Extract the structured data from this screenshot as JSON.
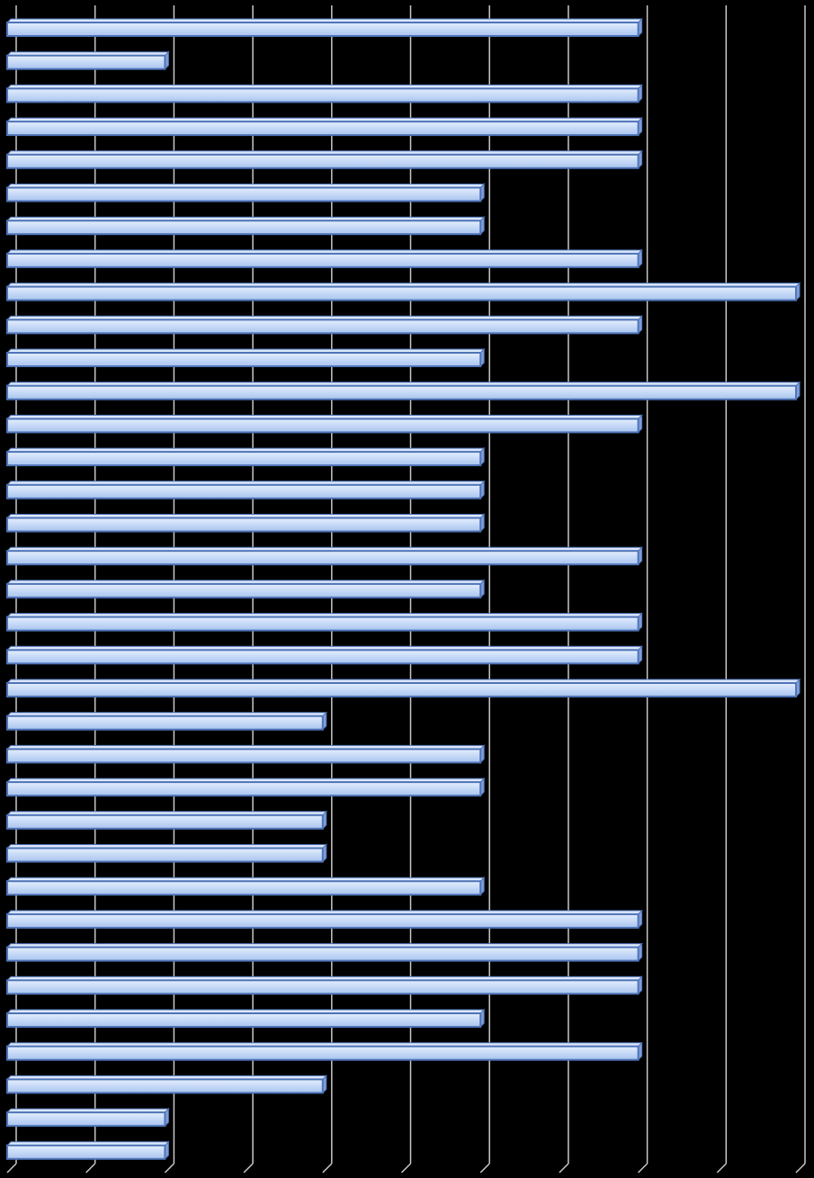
{
  "chart_data": {
    "type": "bar",
    "orientation": "horizontal",
    "style": "3d",
    "title": "",
    "xlabel": "",
    "ylabel": "",
    "xlim": [
      0,
      10
    ],
    "grid": true,
    "legend": "none",
    "background_color": "#000000",
    "gridline_color": "#c8c8c8",
    "bar_color": "#c6d9f7",
    "bar_edge_color": "#4f74b8",
    "values": [
      8,
      2,
      8,
      8,
      8,
      6,
      6,
      8,
      10,
      8,
      6,
      10,
      8,
      6,
      6,
      6,
      8,
      6,
      8,
      8,
      10,
      4,
      6,
      6,
      4,
      4,
      6,
      8,
      8,
      8,
      6,
      8,
      4,
      2,
      2
    ]
  }
}
